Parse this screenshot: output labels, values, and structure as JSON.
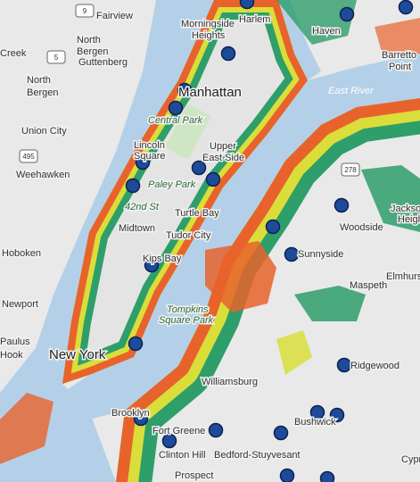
{
  "map": {
    "labels": [
      "Fairview",
      "North",
      "Bergen",
      "North",
      "Bergen",
      "Guttenberg",
      "Union City",
      "Weehawken",
      "Hoboken",
      "Newport",
      "Paulus",
      "Hook",
      "New York",
      "Morningside",
      "Heights",
      "Harlem",
      "Manhattan",
      "Central Park",
      "Upper",
      "East Side",
      "Lincoln",
      "Square",
      "Paley Park",
      "42nd St",
      "Midtown",
      "Turtle Bay",
      "Tudor City",
      "Kips Bay",
      "Tompkins",
      "Square Park",
      "East River",
      "Woodside",
      "Sunnyside",
      "Maspeth",
      "Ridgewood",
      "Bushwick",
      "Williamsburg",
      "Fort Greene",
      "Clinton Hill",
      "Bedford-Stuyvesant",
      "Prospect",
      "Brooklyn",
      "Jackson",
      "Heights",
      "Elmhurst",
      "Barretto",
      "Point",
      "Haven",
      "Cypress",
      "Creek"
    ],
    "route_shields": [
      "9",
      "5",
      "495",
      "278"
    ]
  }
}
